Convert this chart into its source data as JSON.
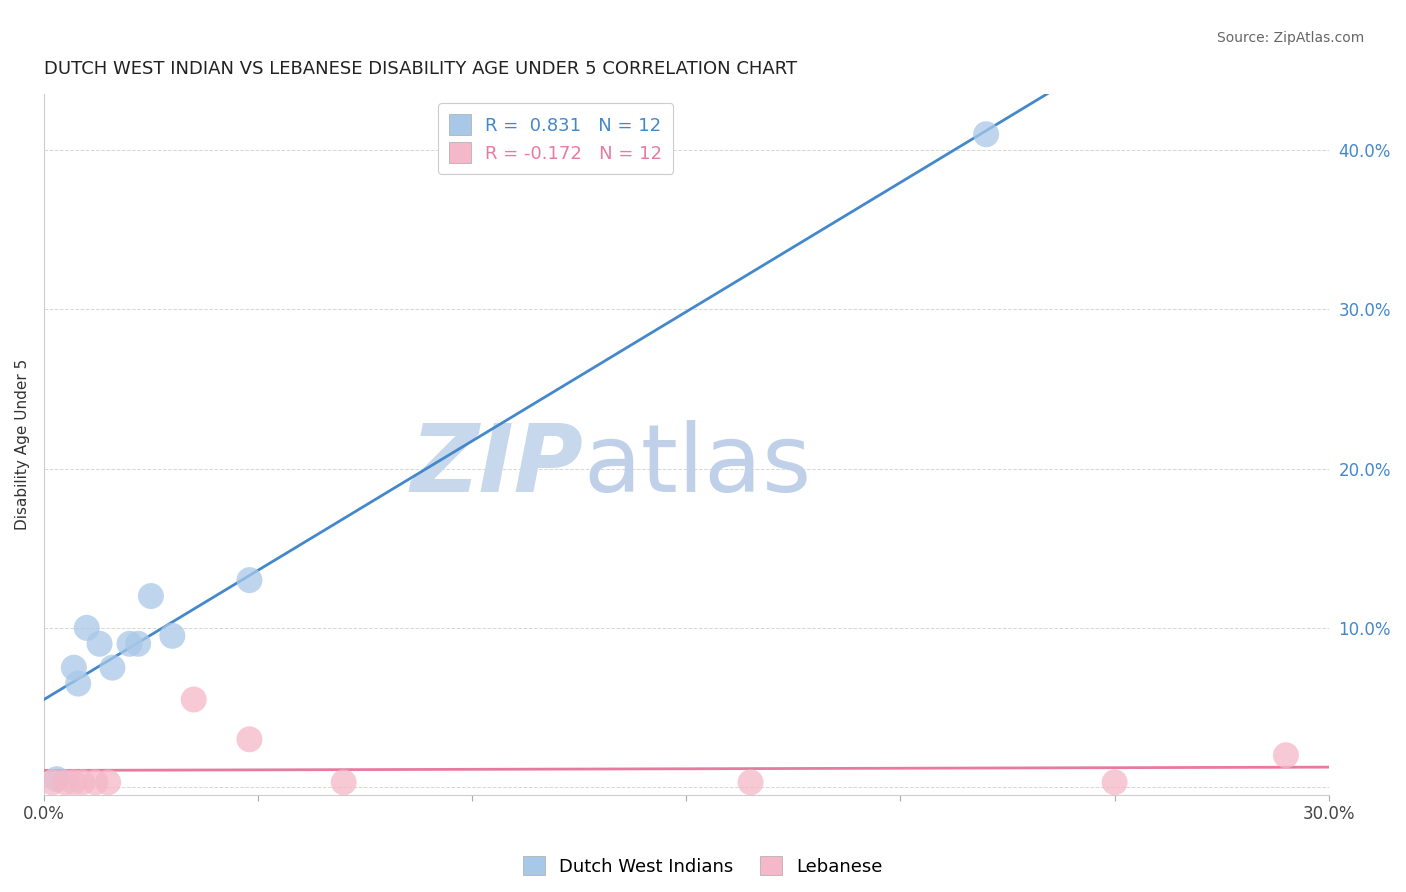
{
  "title": "DUTCH WEST INDIAN VS LEBANESE DISABILITY AGE UNDER 5 CORRELATION CHART",
  "source": "Source: ZipAtlas.com",
  "xlabel": "",
  "ylabel": "Disability Age Under 5",
  "xlim": [
    0.0,
    0.3
  ],
  "ylim": [
    -0.005,
    0.435
  ],
  "x_ticks": [
    0.0,
    0.05,
    0.1,
    0.15,
    0.2,
    0.25,
    0.3
  ],
  "x_tick_labels": [
    "0.0%",
    "",
    "",
    "",
    "",
    "",
    "30.0%"
  ],
  "y_ticks_right": [
    0.0,
    0.1,
    0.2,
    0.3,
    0.4
  ],
  "y_tick_labels_right": [
    "",
    "10.0%",
    "20.0%",
    "30.0%",
    "40.0%"
  ],
  "grid_color": "#cccccc",
  "background_color": "#ffffff",
  "blue_color": "#a8c8e8",
  "pink_color": "#f4b8c8",
  "blue_line_color": "#4488cc",
  "pink_line_color": "#e87aa0",
  "r_blue": 0.831,
  "r_pink": -0.172,
  "n_blue": 12,
  "n_pink": 12,
  "dutch_west_indian_x": [
    0.003,
    0.007,
    0.008,
    0.01,
    0.013,
    0.016,
    0.02,
    0.025,
    0.022,
    0.03,
    0.048,
    0.22
  ],
  "dutch_west_indian_y": [
    0.005,
    0.075,
    0.065,
    0.1,
    0.09,
    0.075,
    0.09,
    0.12,
    0.09,
    0.095,
    0.13,
    0.41
  ],
  "lebanese_x": [
    0.002,
    0.005,
    0.007,
    0.009,
    0.012,
    0.015,
    0.035,
    0.048,
    0.07,
    0.165,
    0.25,
    0.29
  ],
  "lebanese_y": [
    0.003,
    0.003,
    0.003,
    0.003,
    0.003,
    0.003,
    0.055,
    0.03,
    0.003,
    0.003,
    0.003,
    0.02
  ],
  "watermark_zip": "ZIP",
  "watermark_atlas": "atlas",
  "watermark_color_zip": "#c8d8ec",
  "watermark_color_atlas": "#c0d0e8",
  "legend_labels": [
    "Dutch West Indians",
    "Lebanese"
  ],
  "title_fontsize": 13,
  "label_fontsize": 11
}
